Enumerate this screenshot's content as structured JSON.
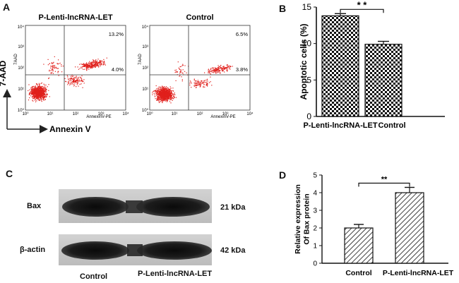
{
  "panel_a": {
    "letter": "A",
    "y_axis_label": "7-AAD",
    "x_axis_label": "Annexin V",
    "plots": [
      {
        "title": "P-Lenti-lncRNA-LET",
        "q_upper_right": "13.2%",
        "q_lower_right": "4.0%",
        "y_label": "7AAD",
        "x_label": "AnnexinV-PE",
        "x_ticks": [
          "10⁰",
          "10¹",
          "10²",
          "10³",
          "10⁴"
        ],
        "y_ticks": [
          "10⁰",
          "10¹",
          "10²",
          "10³",
          "10⁴"
        ]
      },
      {
        "title": "Control",
        "q_upper_right": "6.5%",
        "q_lower_right": "3.8%",
        "y_label": "7AAD",
        "x_label": "AnnexinV-PE",
        "x_ticks": [
          "10⁰",
          "10¹",
          "10²",
          "10³",
          "10⁴"
        ],
        "y_ticks": [
          "10⁰",
          "10¹",
          "10²",
          "10³",
          "10⁴"
        ]
      }
    ],
    "dot_color": "#e0201c"
  },
  "panel_c": {
    "letter": "C",
    "rows": [
      {
        "label": "Bax",
        "size": "21 kDa"
      },
      {
        "label": "β-actin",
        "size": "42 kDa"
      }
    ],
    "lanes": [
      "Control",
      "P-Lenti-lncRNA-LET"
    ]
  },
  "chart_data": [
    {
      "type": "bar",
      "panel": "B",
      "categories": [
        "P-Lenti-lncRNA-LET",
        "Control"
      ],
      "values": [
        13.8,
        9.9
      ],
      "errors": [
        0.3,
        0.4
      ],
      "ylabel": "Apoptotic cells (%)",
      "ylim": [
        0,
        15
      ],
      "yticks": [
        0,
        5,
        10,
        15
      ],
      "significance": "* *",
      "pattern": "checkerboard"
    },
    {
      "type": "bar",
      "panel": "D",
      "categories": [
        "Control",
        "P-Lenti-lncRNA-LET"
      ],
      "values": [
        2.0,
        4.0
      ],
      "errors": [
        0.2,
        0.3
      ],
      "ylabel_lines": [
        "Relative expression",
        "Of Bax protein"
      ],
      "ylim": [
        0,
        5
      ],
      "yticks": [
        0,
        1,
        2,
        3,
        4,
        5
      ],
      "significance": "**",
      "pattern": "diagonal-hatch"
    }
  ]
}
